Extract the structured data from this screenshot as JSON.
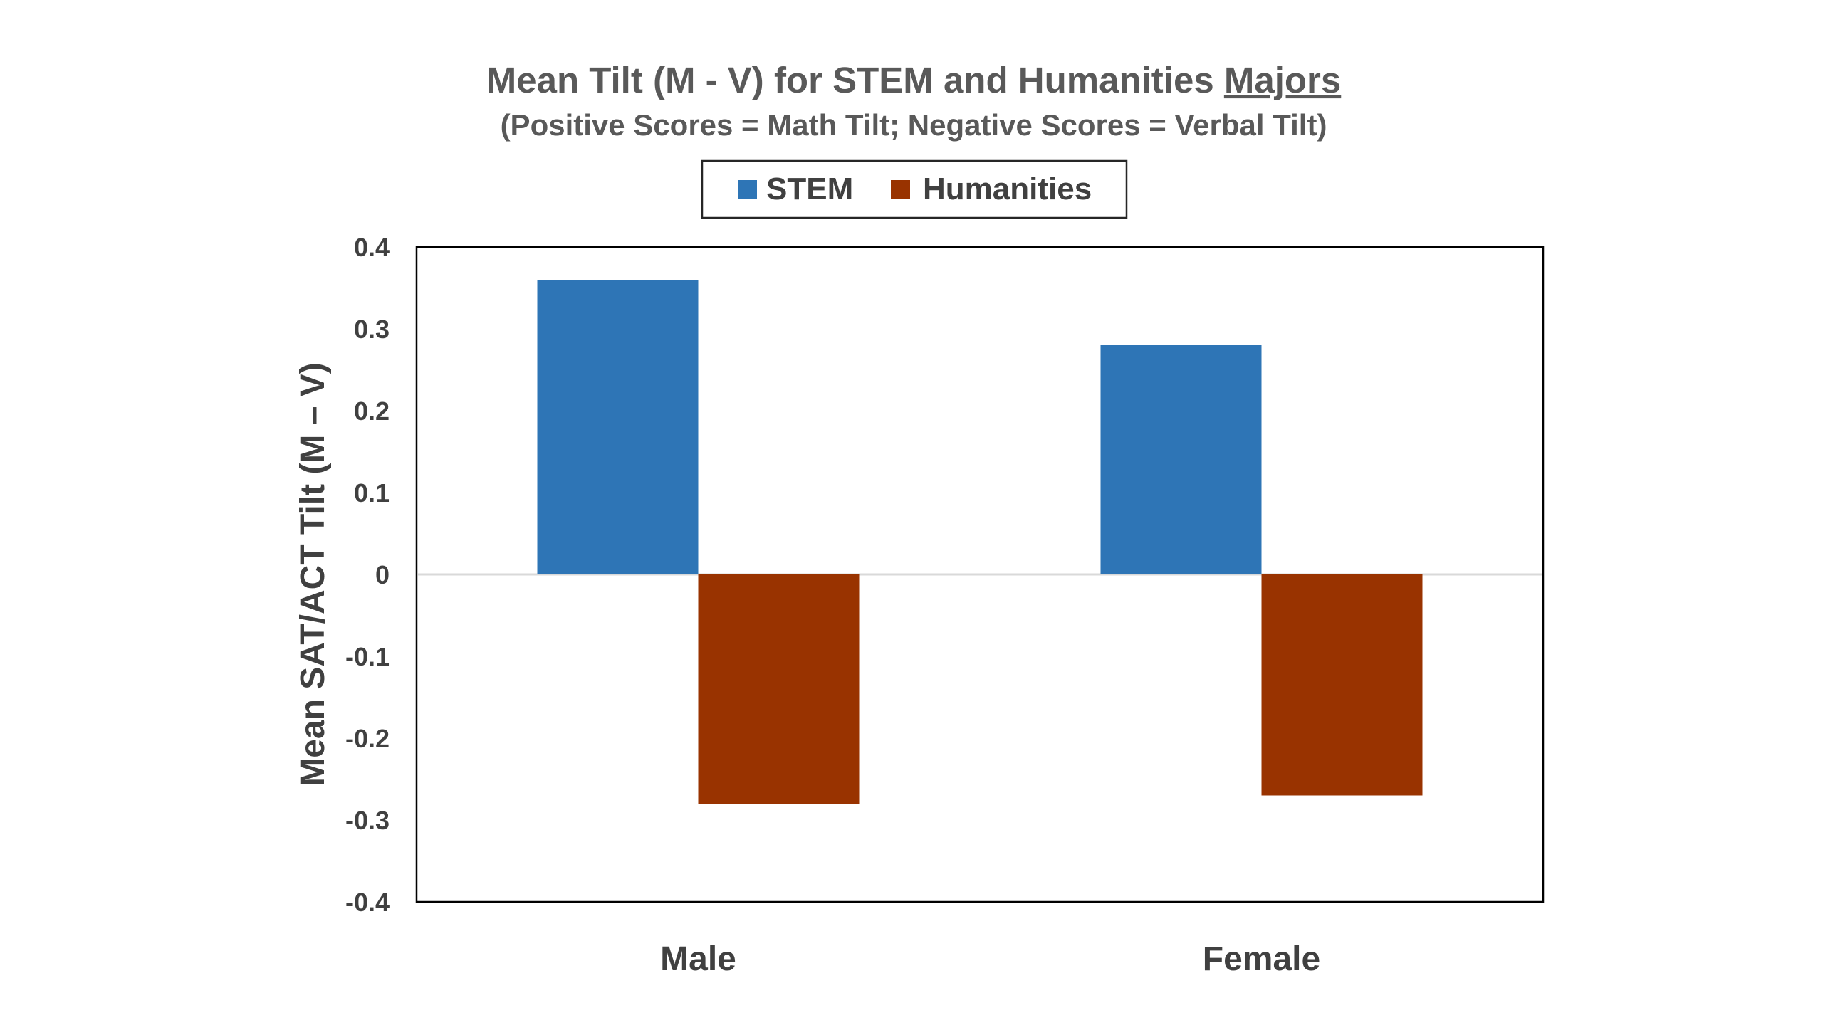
{
  "chart_data": {
    "type": "bar",
    "title": "Mean Tilt (M - V) for STEM and Humanities",
    "title_underlined": "Majors",
    "subtitle": "(Positive Scores = Math Tilt; Negative Scores = Verbal Tilt)",
    "xlabel": "",
    "ylabel": "Mean SAT/ACT Tilt (M – V)",
    "categories": [
      "Male",
      "Female"
    ],
    "series": [
      {
        "name": "STEM",
        "values": [
          0.36,
          0.28
        ],
        "color": "#2e75b6"
      },
      {
        "name": "Humanities",
        "values": [
          -0.28,
          -0.27
        ],
        "color": "#993300"
      }
    ],
    "ylim": [
      -0.4,
      0.4
    ],
    "yticks": [
      0.4,
      0.3,
      0.2,
      0.1,
      0,
      -0.1,
      -0.2,
      -0.3,
      -0.4
    ],
    "ytick_labels": [
      "0.4",
      "0.3",
      "0.2",
      "0.1",
      "0",
      "-0.1",
      "-0.2",
      "-0.3",
      "-0.4"
    ],
    "grid": false,
    "legend_position": "top-center",
    "zero_line_color": "#d9d9d9",
    "axis_color": "#000000"
  }
}
